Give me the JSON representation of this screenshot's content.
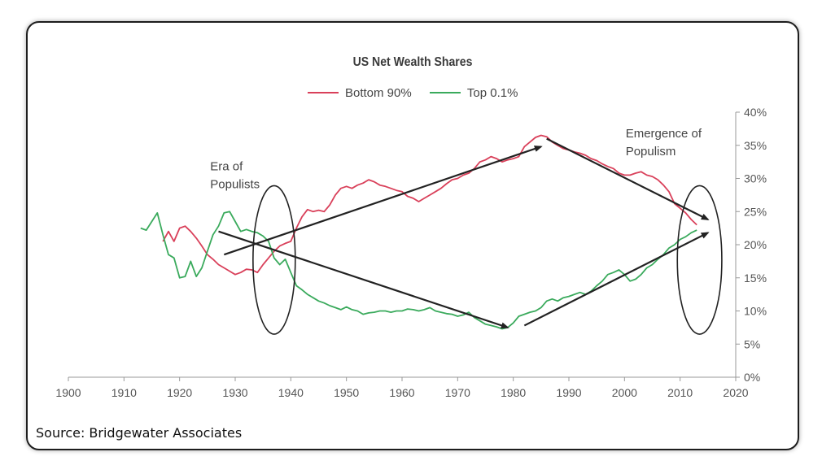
{
  "chart_data": {
    "type": "line",
    "title": "US Net Wealth Shares",
    "xlabel": "",
    "ylabel": "",
    "xlim": [
      1900,
      2020
    ],
    "ylim": [
      0,
      40
    ],
    "x_ticks": [
      1900,
      1910,
      1920,
      1930,
      1940,
      1950,
      1960,
      1970,
      1980,
      1990,
      2000,
      2010,
      2020
    ],
    "y_ticks": [
      "0%",
      "5%",
      "10%",
      "15%",
      "20%",
      "25%",
      "30%",
      "35%",
      "40%"
    ],
    "y_tick_values": [
      0,
      5,
      10,
      15,
      20,
      25,
      30,
      35,
      40
    ],
    "legend": "top-center",
    "colors": {
      "bottom90": "#d9405a",
      "top01": "#3aaa5c",
      "arrows": "#222222"
    },
    "series": [
      {
        "name": "Bottom 90%",
        "color": "#d9405a",
        "x": [
          1917,
          1918,
          1919,
          1920,
          1921,
          1922,
          1923,
          1924,
          1925,
          1926,
          1927,
          1928,
          1929,
          1930,
          1931,
          1932,
          1933,
          1934,
          1935,
          1936,
          1937,
          1938,
          1939,
          1940,
          1941,
          1942,
          1943,
          1944,
          1945,
          1946,
          1947,
          1948,
          1949,
          1950,
          1951,
          1952,
          1953,
          1954,
          1955,
          1956,
          1957,
          1958,
          1959,
          1960,
          1961,
          1962,
          1963,
          1964,
          1965,
          1966,
          1967,
          1968,
          1969,
          1970,
          1971,
          1972,
          1973,
          1974,
          1975,
          1976,
          1977,
          1978,
          1979,
          1980,
          1981,
          1982,
          1983,
          1984,
          1985,
          1986,
          1987,
          1988,
          1989,
          1990,
          1991,
          1992,
          1993,
          1994,
          1995,
          1996,
          1997,
          1998,
          1999,
          2000,
          2001,
          2002,
          2003,
          2004,
          2005,
          2006,
          2007,
          2008,
          2009,
          2010,
          2011,
          2012,
          2013
        ],
        "values": [
          20.5,
          22,
          20.5,
          22.5,
          22.8,
          22,
          21,
          19.8,
          18.5,
          17.8,
          17,
          16.5,
          16,
          15.5,
          15.8,
          16.3,
          16.2,
          15.8,
          17,
          18,
          19,
          19.8,
          20.2,
          20.5,
          22.5,
          24.2,
          25.3,
          25,
          25.2,
          25,
          26,
          27.5,
          28.5,
          28.8,
          28.5,
          29,
          29.3,
          29.8,
          29.5,
          29,
          28.8,
          28.5,
          28.2,
          28,
          27.3,
          27,
          26.5,
          27,
          27.5,
          28,
          28.5,
          29.2,
          29.8,
          30,
          30.5,
          30.8,
          31.5,
          32.5,
          32.8,
          33.3,
          33,
          32.5,
          32.8,
          33,
          33.3,
          34.8,
          35.5,
          36.2,
          36.5,
          36.3,
          35.5,
          35,
          34.5,
          34.3,
          34,
          33.8,
          33.5,
          33,
          32.7,
          32.2,
          31.8,
          31.5,
          30.8,
          30.5,
          30.5,
          30.8,
          31,
          30.5,
          30.3,
          29.8,
          29,
          28,
          26.2,
          25.5,
          24.8,
          23.8,
          23
        ]
      },
      {
        "name": "Top 0.1%",
        "color": "#3aaa5c",
        "x": [
          1913,
          1914,
          1915,
          1916,
          1917,
          1918,
          1919,
          1920,
          1921,
          1922,
          1923,
          1924,
          1925,
          1926,
          1927,
          1928,
          1929,
          1930,
          1931,
          1932,
          1933,
          1934,
          1935,
          1936,
          1937,
          1938,
          1939,
          1940,
          1941,
          1942,
          1943,
          1944,
          1945,
          1946,
          1947,
          1948,
          1949,
          1950,
          1951,
          1952,
          1953,
          1954,
          1955,
          1956,
          1957,
          1958,
          1959,
          1960,
          1961,
          1962,
          1963,
          1964,
          1965,
          1966,
          1967,
          1968,
          1969,
          1970,
          1971,
          1972,
          1973,
          1974,
          1975,
          1976,
          1977,
          1978,
          1979,
          1980,
          1981,
          1982,
          1983,
          1984,
          1985,
          1986,
          1987,
          1988,
          1989,
          1990,
          1991,
          1992,
          1993,
          1994,
          1995,
          1996,
          1997,
          1998,
          1999,
          2000,
          2001,
          2002,
          2003,
          2004,
          2005,
          2006,
          2007,
          2008,
          2009,
          2010,
          2011,
          2012,
          2013
        ],
        "values": [
          22.5,
          22.2,
          23.5,
          24.8,
          21.5,
          18.5,
          18,
          15,
          15.2,
          17.5,
          15.2,
          16.5,
          19,
          21.5,
          22.8,
          24.8,
          25,
          23.5,
          22,
          22.3,
          22,
          21.8,
          21.3,
          20.5,
          18,
          17,
          17.8,
          15.8,
          13.8,
          13.2,
          12.5,
          12,
          11.5,
          11.2,
          10.8,
          10.5,
          10.2,
          10.6,
          10.2,
          10,
          9.5,
          9.7,
          9.8,
          10,
          10,
          9.8,
          10,
          10,
          10.3,
          10.2,
          10,
          10.2,
          10.5,
          10,
          9.8,
          9.6,
          9.5,
          9.2,
          9.4,
          9.8,
          9,
          8.5,
          8,
          7.8,
          7.6,
          7.3,
          7.5,
          8.2,
          9.2,
          9.5,
          9.8,
          10,
          10.5,
          11.5,
          11.8,
          11.5,
          12,
          12.2,
          12.5,
          12.8,
          12.5,
          13,
          13.8,
          14.5,
          15.5,
          15.8,
          16.2,
          15.5,
          14.5,
          14.8,
          15.5,
          16.5,
          17,
          17.8,
          18.5,
          19.5,
          20,
          20.8,
          21.2,
          21.8,
          22.2
        ]
      }
    ],
    "annotations": [
      {
        "id": "era",
        "lines": [
          "Era of",
          "Populists"
        ],
        "x": 1925.5,
        "y": 31.2
      },
      {
        "id": "emergence",
        "lines": [
          "Emergence of",
          "Populism"
        ],
        "x": 2000.2,
        "y": 36.2
      }
    ],
    "ellipses": [
      {
        "cx": 1937,
        "cy": 17.7,
        "rx": 3.8,
        "ry": 11.2
      },
      {
        "cx": 2013.5,
        "cy": 17.7,
        "rx": 4.0,
        "ry": 11.2
      }
    ],
    "arrows": [
      {
        "x1": 1928,
        "y1": 18.5,
        "x2": 1985,
        "y2": 34.8
      },
      {
        "x1": 1927,
        "y1": 22.0,
        "x2": 1979,
        "y2": 7.5
      },
      {
        "x1": 1986,
        "y1": 36.0,
        "x2": 2015,
        "y2": 23.8
      },
      {
        "x1": 1982,
        "y1": 7.8,
        "x2": 2015,
        "y2": 21.8
      }
    ]
  },
  "source_label": "Source:  Bridgewater Associates"
}
